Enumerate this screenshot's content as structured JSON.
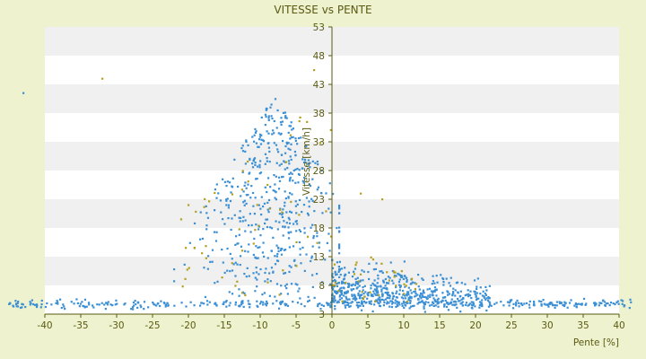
{
  "chart_data": {
    "type": "scatter",
    "title": "VITESSE vs PENTE",
    "xlabel": "Pente [%]",
    "ylabel": "Vitesse [km/h]",
    "xlim": [
      -40,
      40
    ],
    "ylim": [
      3,
      53
    ],
    "x_ticks": [
      -40,
      -35,
      -30,
      -25,
      -20,
      -15,
      -10,
      -5,
      0,
      5,
      10,
      15,
      20,
      25,
      30,
      35,
      40
    ],
    "y_ticks": [
      3,
      8,
      13,
      18,
      23,
      28,
      33,
      38,
      43,
      48,
      53
    ],
    "grid": "horizontal alternating bands",
    "legend": "none",
    "series": [
      {
        "color": "#3b8fd4",
        "clusters": [
          {
            "desc": "baseline",
            "x_range": [
              -45,
              42
            ],
            "y_center": 4.8,
            "y_spread": 0.6,
            "count": 420
          },
          {
            "desc": "descent-cloud",
            "x_center": -8,
            "x_spread": 4.5,
            "y_range": [
              6,
              41
            ],
            "count": 520
          },
          {
            "desc": "climb-band",
            "x_range": [
              0,
              22
            ],
            "y_center": 8.5,
            "y_spread": 1.8,
            "count": 520
          }
        ],
        "outliers": [
          [
            -43,
            41.5
          ],
          [
            -46,
            5.2
          ],
          [
            40.5,
            5.3
          ]
        ]
      },
      {
        "color": "#b3a020",
        "clusters": [
          {
            "desc": "sparse-secondary",
            "x_range": [
              -22,
              12
            ],
            "y_range": [
              5,
              45
            ],
            "count": 90
          }
        ],
        "outliers": [
          [
            -32,
            44
          ],
          [
            -2.5,
            45.5
          ],
          [
            -20,
            22
          ],
          [
            4,
            24
          ],
          [
            7,
            23
          ]
        ]
      }
    ]
  },
  "colors": {
    "background": "#eef2cf",
    "plot_band_light": "#ffffff",
    "plot_band_dark": "#f0f0f0",
    "axis": "#5a5a12"
  }
}
